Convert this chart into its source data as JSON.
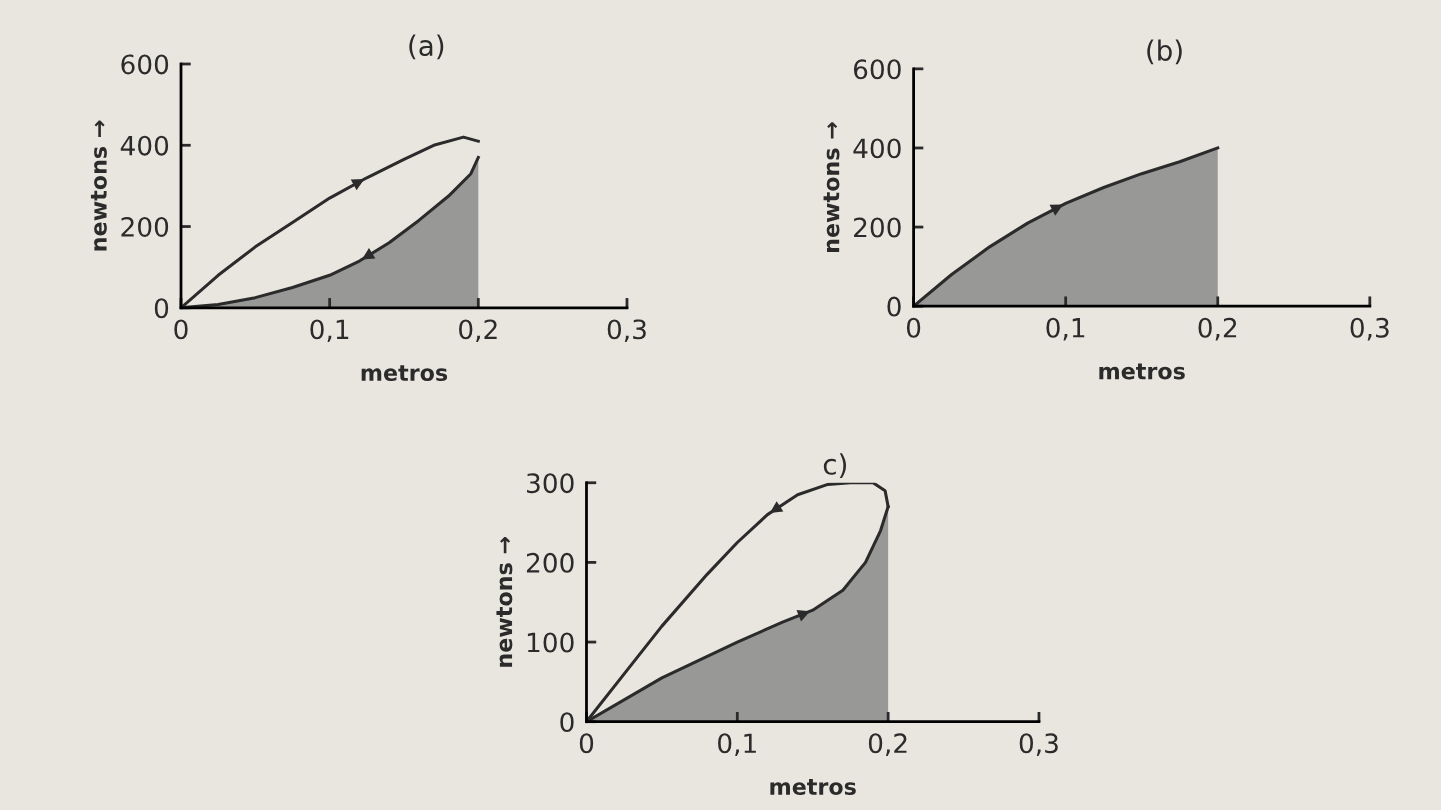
{
  "chart_data": [
    {
      "type": "line",
      "title": "(a)",
      "xlabel": "metros",
      "ylabel": "newtons →",
      "xlim": [
        0,
        0.3
      ],
      "ylim": [
        0,
        600
      ],
      "xticks": [
        0,
        {
          "value": 0.1,
          "label": "0,1"
        },
        {
          "value": 0.2,
          "label": "0,2"
        },
        {
          "value": 0.3,
          "label": "0,3"
        }
      ],
      "yticks": [
        0,
        200,
        400,
        600
      ],
      "grid": false,
      "legend": false,
      "series": [
        {
          "type": "line",
          "color": "#2b2b2b",
          "x": [
            0,
            0.025,
            0.05,
            0.075,
            0.1,
            0.125,
            0.15,
            0.17,
            0.19,
            0.2
          ],
          "values": [
            0,
            80,
            150,
            210,
            270,
            320,
            365,
            400,
            420,
            410
          ]
        },
        {
          "type": "area",
          "color": "#8a8a8a",
          "x": [
            0.2,
            0.195,
            0.18,
            0.16,
            0.14,
            0.12,
            0.1,
            0.075,
            0.05,
            0.025,
            0
          ],
          "values": [
            370,
            330,
            275,
            215,
            160,
            115,
            80,
            50,
            25,
            8,
            0
          ]
        }
      ]
    },
    {
      "type": "line",
      "title": "(b)",
      "xlabel": "metros",
      "ylabel": "newtons →",
      "xlim": [
        0,
        0.3
      ],
      "ylim": [
        0,
        600
      ],
      "xticks": [
        0,
        {
          "value": 0.1,
          "label": "0,1"
        },
        {
          "value": 0.2,
          "label": "0,2"
        },
        {
          "value": 0.3,
          "label": "0,3"
        }
      ],
      "yticks": [
        0,
        200,
        400,
        600
      ],
      "grid": false,
      "legend": false,
      "series": [
        {
          "type": "area",
          "color": "#8a8a8a",
          "x": [
            0,
            0.025,
            0.05,
            0.075,
            0.1,
            0.125,
            0.15,
            0.175,
            0.2
          ],
          "values": [
            0,
            80,
            150,
            210,
            260,
            300,
            335,
            365,
            400
          ]
        }
      ]
    },
    {
      "type": "line",
      "title": "c)",
      "xlabel": "metros",
      "ylabel": "newtons →",
      "xlim": [
        0,
        0.3
      ],
      "ylim": [
        0,
        300
      ],
      "xticks": [
        0,
        {
          "value": 0.1,
          "label": "0,1"
        },
        {
          "value": 0.2,
          "label": "0,2"
        },
        {
          "value": 0.3,
          "label": "0,3"
        }
      ],
      "yticks": [
        0,
        100,
        200,
        300
      ],
      "grid": false,
      "legend": false,
      "series": [
        {
          "type": "area",
          "color": "#8a8a8a",
          "x": [
            0,
            0.05,
            0.1,
            0.13,
            0.15,
            0.17,
            0.185,
            0.195,
            0.2
          ],
          "values": [
            0,
            55,
            100,
            125,
            140,
            165,
            200,
            240,
            270
          ]
        },
        {
          "type": "line",
          "color": "#2b2b2b",
          "x": [
            0.2,
            0.198,
            0.19,
            0.175,
            0.16,
            0.14,
            0.12,
            0.1,
            0.08,
            0.05,
            0.025,
            0
          ],
          "values": [
            270,
            290,
            300,
            300,
            298,
            285,
            260,
            225,
            185,
            120,
            60,
            0
          ]
        }
      ]
    }
  ]
}
